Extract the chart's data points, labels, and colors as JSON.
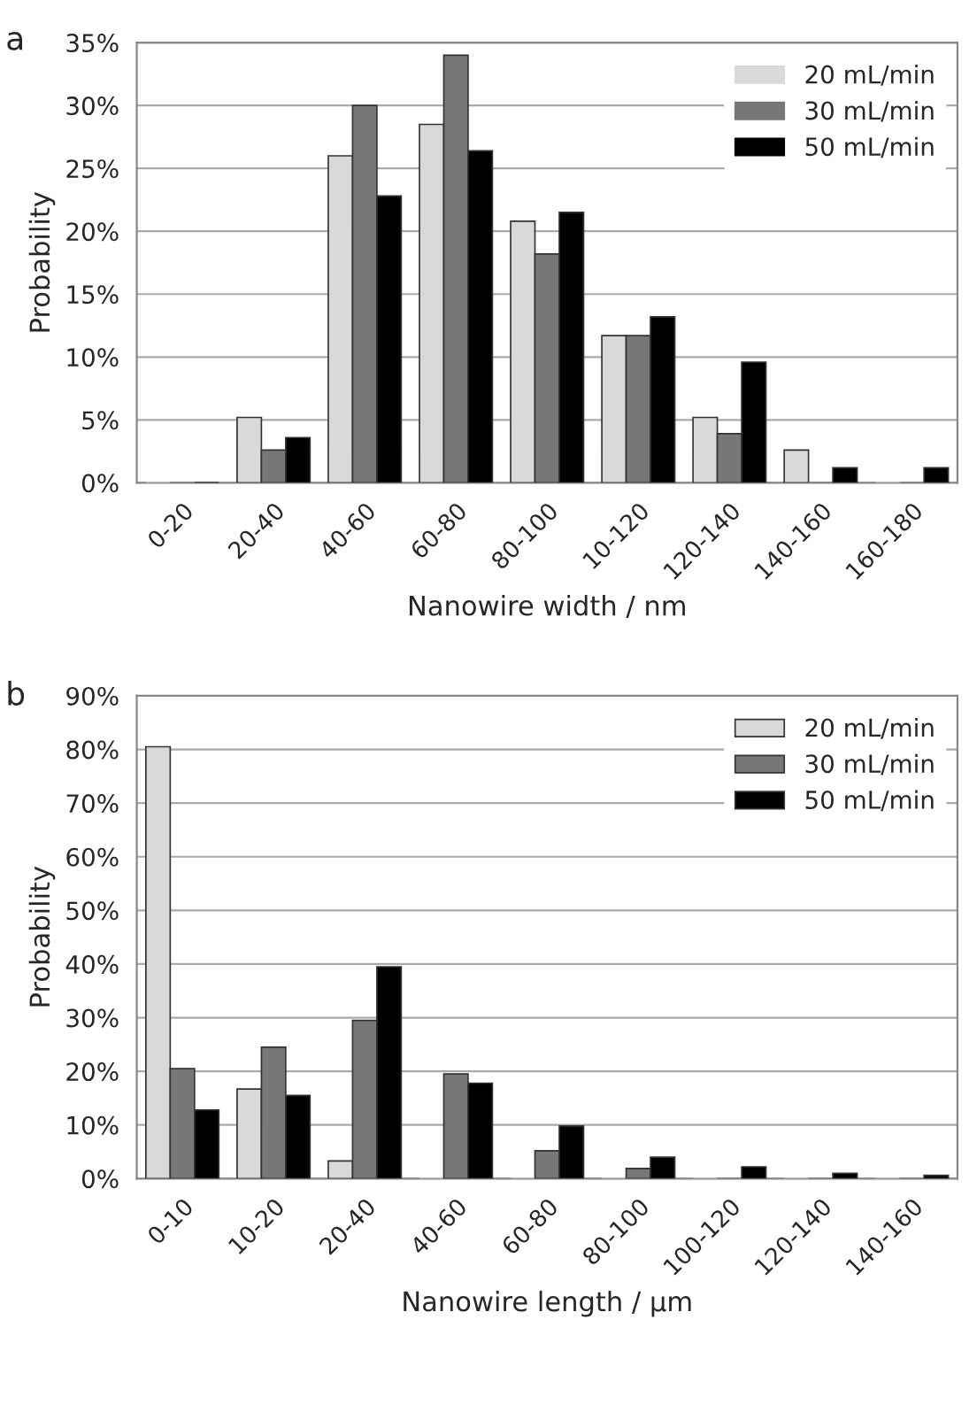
{
  "chart_data": [
    {
      "type": "bar",
      "title": "a",
      "xlabel": "Nanowire width / nm",
      "ylabel": "Probability",
      "categories": [
        "0-20",
        "20-40",
        "40-60",
        "60-80",
        "80-100",
        "10-120",
        "120-140",
        "140-160",
        "160-180"
      ],
      "series": [
        {
          "name": "20 mL/min",
          "color": "#d9d9d9",
          "values": [
            0,
            5.2,
            26,
            28.5,
            20.8,
            11.7,
            5.2,
            2.6,
            0
          ]
        },
        {
          "name": "30 mL/min",
          "color": "#777777",
          "values": [
            0,
            2.6,
            30,
            34,
            18.2,
            11.7,
            3.9,
            0,
            0
          ]
        },
        {
          "name": "50 mL/min",
          "color": "#000000",
          "values": [
            0,
            3.6,
            22.8,
            26.4,
            21.5,
            13.2,
            9.6,
            1.2,
            1.2
          ]
        }
      ],
      "ylim": [
        0,
        35
      ],
      "yticks": [
        {
          "value": 0,
          "label": "0%"
        },
        {
          "value": 5,
          "label": "5%"
        },
        {
          "value": 10,
          "label": "10%"
        },
        {
          "value": 15,
          "label": "15%"
        },
        {
          "value": 20,
          "label": "20%"
        },
        {
          "value": 25,
          "label": "25%"
        },
        {
          "value": 30,
          "label": "30%"
        },
        {
          "value": 35,
          "label": "35%"
        }
      ],
      "grid": "y",
      "legend": "top right"
    },
    {
      "type": "bar",
      "title": "b",
      "xlabel": "Nanowire length / µm",
      "ylabel": "Probability",
      "categories": [
        "0-10",
        "10-20",
        "20-40",
        "40-60",
        "60-80",
        "80-100",
        "100-120",
        "120-140",
        "140-160"
      ],
      "series": [
        {
          "name": "20 mL/min",
          "color": "#d9d9d9",
          "values": [
            80.5,
            16.7,
            3.3,
            0,
            0,
            0,
            0,
            0,
            0
          ]
        },
        {
          "name": "30 mL/min",
          "color": "#777777",
          "values": [
            20.5,
            24.5,
            29.5,
            19.5,
            5.2,
            1.9,
            0,
            0,
            0
          ]
        },
        {
          "name": "50 mL/min",
          "color": "#000000",
          "values": [
            12.8,
            15.5,
            39.5,
            17.8,
            9.8,
            4.0,
            2.2,
            1.0,
            0.6
          ]
        }
      ],
      "ylim": [
        0,
        90
      ],
      "yticks": [
        {
          "value": 0,
          "label": "0%"
        },
        {
          "value": 10,
          "label": "10%"
        },
        {
          "value": 20,
          "label": "20%"
        },
        {
          "value": 30,
          "label": "30%"
        },
        {
          "value": 40,
          "label": "40%"
        },
        {
          "value": 50,
          "label": "50%"
        },
        {
          "value": 60,
          "label": "60%"
        },
        {
          "value": 70,
          "label": "70%"
        },
        {
          "value": 80,
          "label": "80%"
        },
        {
          "value": 90,
          "label": "90%"
        }
      ],
      "grid": "y",
      "legend": "top right"
    }
  ]
}
